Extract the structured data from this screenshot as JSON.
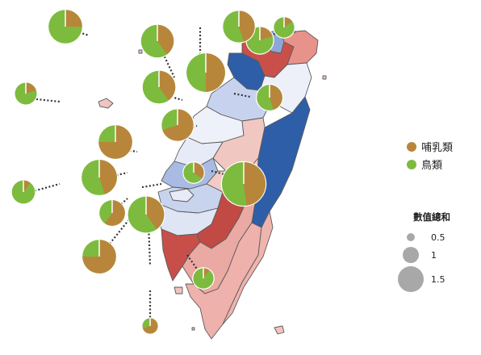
{
  "colors": {
    "mammal": "#b8863b",
    "bird": "#7dbb3e",
    "size_symbol": "#a8a8a8",
    "county_outline": "#5a5a5a",
    "leader_line": "#333333"
  },
  "legend": {
    "categories": [
      {
        "key": "mammal",
        "label": "哺乳類"
      },
      {
        "key": "bird",
        "label": "鳥類"
      }
    ],
    "size_title": "數值總和",
    "size_values": [
      "0.5",
      "1",
      "1.5"
    ]
  },
  "chart_data": {
    "type": "map-pie",
    "note_units": "pie size = 數值總和 (sum of values); slices = share of 哺乳類 vs 鳥類",
    "pies": [
      {
        "id": "pie-keelung",
        "total": 0.35,
        "mammal_share": 0.15
      },
      {
        "id": "pie-taipei",
        "total": 0.6,
        "mammal_share": 0.2
      },
      {
        "id": "pie-newtaipei",
        "total": 1.25,
        "mammal_share": 0.5
      },
      {
        "id": "pie-yilan",
        "total": 0.85,
        "mammal_share": 0.45
      },
      {
        "id": "pie-hualien",
        "total": 1.6,
        "mammal_share": 0.48
      },
      {
        "id": "pie-far-nw",
        "total": 0.95,
        "mammal_share": 0.25
      },
      {
        "id": "pie-taoyuan",
        "total": 0.9,
        "mammal_share": 0.4
      },
      {
        "id": "pie-hsinchu",
        "total": 0.9,
        "mammal_share": 0.4
      },
      {
        "id": "pie-hsinchuc",
        "total": 0.55,
        "mammal_share": 0.45
      },
      {
        "id": "pie-miaoli",
        "total": 0.85,
        "mammal_share": 0.7
      },
      {
        "id": "pie-matsu",
        "total": 0.4,
        "mammal_share": 0.2
      },
      {
        "id": "pie-taichung",
        "total": 0.35,
        "mammal_share": 0.35
      },
      {
        "id": "pie-changhua",
        "total": 1.05,
        "mammal_share": 0.45
      },
      {
        "id": "pie-kinmen",
        "total": 0.45,
        "mammal_share": 0.1
      },
      {
        "id": "pie-yunlin",
        "total": 0.55,
        "mammal_share": 0.6
      },
      {
        "id": "pie-chiayi",
        "total": 1.1,
        "mammal_share": 0.4
      },
      {
        "id": "pie-tainan",
        "total": 0.95,
        "mammal_share": 0.75
      },
      {
        "id": "pie-kaohsiung",
        "total": 0.35,
        "mammal_share": 0.1
      },
      {
        "id": "pie-penghu",
        "total": 0.2,
        "mammal_share": 0.7
      }
    ]
  }
}
